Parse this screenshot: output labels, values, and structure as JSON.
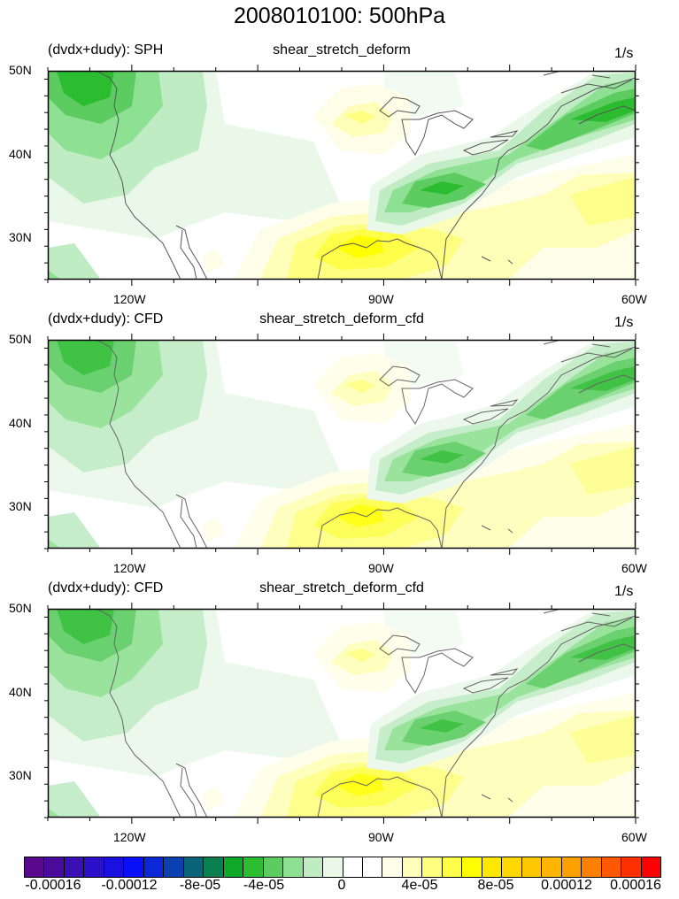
{
  "main_title": "2008010100: 500hPa",
  "units": "1/s",
  "panels": [
    {
      "left_title": "(dvdx+dudy): SPH",
      "center_title": "shear_stretch_deform",
      "right_title": "1/s"
    },
    {
      "left_title": "(dvdx+dudy): CFD",
      "center_title": "shear_stretch_deform_cfd",
      "right_title": "1/s"
    },
    {
      "left_title": "(dvdx+dudy): CFD",
      "center_title": "shear_stretch_deform_cfd",
      "right_title": "1/s"
    }
  ],
  "lat_labels": [
    "50N",
    "40N",
    "30N"
  ],
  "lon_labels": [
    "120W",
    "90W",
    "60W"
  ],
  "chart_data": {
    "type": "heatmap",
    "title": "2008010100: 500hPa",
    "xlim": [
      -130,
      -60
    ],
    "ylim": [
      25,
      50
    ],
    "x_ticks": [
      -120,
      -90,
      -60
    ],
    "y_ticks": [
      30,
      40,
      50
    ],
    "colorbar": {
      "labels": [
        "-0.00016",
        "-0.00012",
        "-8e-05",
        "-4e-05",
        "0",
        "4e-05",
        "8e-05",
        "0.00012",
        "0.00016"
      ],
      "colors": [
        "#5a0a8c",
        "#4a0a9c",
        "#3a10b4",
        "#2a10c8",
        "#1a10e0",
        "#0a10f8",
        "#0a28d8",
        "#0a40b0",
        "#0a6478",
        "#0a8050",
        "#10a828",
        "#2cbc30",
        "#5ccc60",
        "#8ee092",
        "#c0ecc4",
        "#eaf8ea",
        "#ffffff",
        "#ffffff",
        "#fefee8",
        "#fefeb8",
        "#fefe80",
        "#fefe48",
        "#fefe00",
        "#fee800",
        "#fed800",
        "#fec800",
        "#feb400",
        "#fea000",
        "#fe8000",
        "#fe5800",
        "#fe3000",
        "#fe0000"
      ]
    },
    "features": [
      {
        "region": "Pacific NW (~125W,47N)",
        "value": -6e-05
      },
      {
        "region": "Ohio Valley / Northeast band (~85W,40N to 62W,47N)",
        "value": -6e-05
      },
      {
        "region": "Gulf coast (~93W,30N)",
        "value": 6e-05
      },
      {
        "region": "Upper Midwest (~92W,45N)",
        "value": 2e-05
      }
    ]
  }
}
